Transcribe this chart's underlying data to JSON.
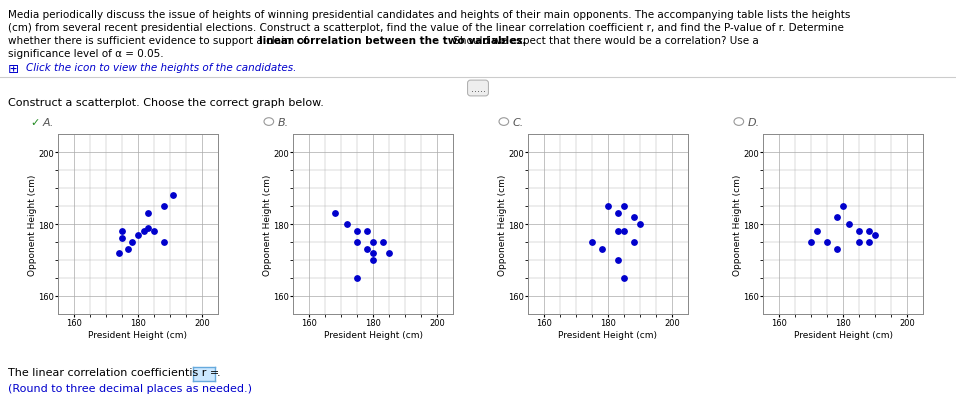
{
  "lines": [
    "Media periodically discuss the issue of heights of winning presidential candidates and heights of their main opponents. The accompanying table lists the heights",
    "(cm) from several recent presidential elections. Construct a scatterplot, find the value of the linear correlation coefficient r, and find the P-value of r. Determine",
    "whether there is sufficient evidence to support a claim of |linear correlation between the two variables.| Should we expect that there would be a correlation? Use a",
    "significance level of α = 0.05."
  ],
  "click_text": "Click the icon to view the heights of the candidates.",
  "instruction": "Construct a scatterplot. Choose the correct graph below.",
  "options": [
    "A.",
    "B.",
    "C.",
    "D."
  ],
  "xlabel": "President Height (cm)",
  "ylabel": "Opponent Height (cm)",
  "xlim": [
    155,
    205
  ],
  "ylim": [
    155,
    205
  ],
  "xticks": [
    160,
    180,
    200
  ],
  "yticks": [
    160,
    180,
    200
  ],
  "dot_color": "#0000cc",
  "dot_size": 15,
  "grid_color": "#aaaaaa",
  "scatter_A": [
    [
      188,
      185
    ],
    [
      182,
      178
    ],
    [
      175,
      176
    ],
    [
      175,
      178
    ],
    [
      178,
      175
    ],
    [
      183,
      183
    ],
    [
      191,
      188
    ],
    [
      177,
      173
    ],
    [
      180,
      177
    ],
    [
      174,
      172
    ],
    [
      188,
      175
    ],
    [
      185,
      178
    ],
    [
      183,
      179
    ]
  ],
  "scatter_B": [
    [
      168,
      183
    ],
    [
      172,
      180
    ],
    [
      175,
      178
    ],
    [
      175,
      175
    ],
    [
      178,
      178
    ],
    [
      178,
      173
    ],
    [
      180,
      175
    ],
    [
      180,
      172
    ],
    [
      183,
      175
    ],
    [
      185,
      172
    ],
    [
      175,
      165
    ],
    [
      180,
      170
    ]
  ],
  "scatter_C": [
    [
      180,
      185
    ],
    [
      183,
      183
    ],
    [
      185,
      185
    ],
    [
      188,
      182
    ],
    [
      190,
      180
    ],
    [
      183,
      178
    ],
    [
      185,
      178
    ],
    [
      188,
      175
    ],
    [
      175,
      175
    ],
    [
      178,
      173
    ],
    [
      183,
      170
    ],
    [
      185,
      165
    ]
  ],
  "scatter_D": [
    [
      178,
      182
    ],
    [
      180,
      185
    ],
    [
      182,
      180
    ],
    [
      185,
      178
    ],
    [
      185,
      175
    ],
    [
      188,
      178
    ],
    [
      188,
      175
    ],
    [
      190,
      177
    ],
    [
      170,
      175
    ],
    [
      172,
      178
    ],
    [
      175,
      175
    ],
    [
      178,
      173
    ]
  ],
  "bottom_text": "The linear correlation coefficientis r =",
  "bottom_text2": "(Round to three decimal places as needed.)",
  "separator_dots": ".....",
  "checkmark_color": "#228B22",
  "radio_color": "#999999",
  "answer_box_color": "#cce8ff",
  "answer_box_border": "#66aadd",
  "link_color": "#0000cc",
  "bold_color": "#000000",
  "text_color": "#000000",
  "bg_color": "#ffffff"
}
